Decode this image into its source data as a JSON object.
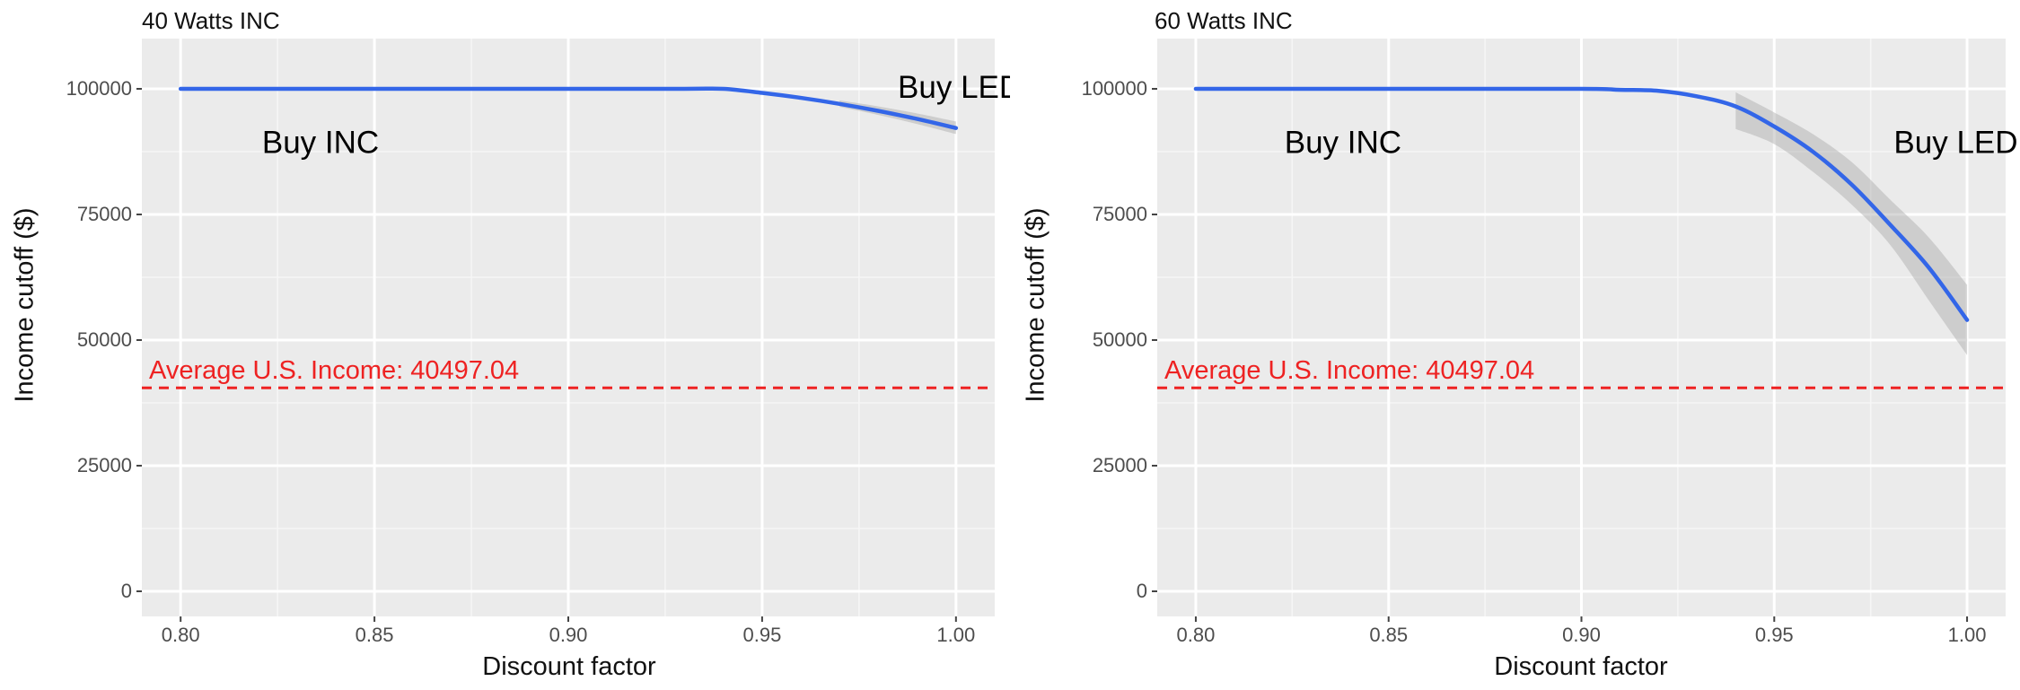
{
  "chart_data": [
    {
      "type": "line",
      "title": "40 Watts INC",
      "xlabel": "Discount factor",
      "ylabel": "Income cutoff ($)",
      "xlim": [
        0.79,
        1.01
      ],
      "ylim": [
        -5000,
        110000
      ],
      "x_ticks": [
        "0.80",
        "0.85",
        "0.90",
        "0.95",
        "1.00"
      ],
      "y_ticks": [
        "0",
        "25000",
        "50000",
        "75000",
        "100000"
      ],
      "grid": true,
      "series": [
        {
          "x": [
            0.8,
            0.85,
            0.9,
            0.93,
            0.94,
            0.95,
            0.96,
            0.97,
            0.98,
            0.99,
            1.0
          ],
          "y": [
            100000,
            100000,
            100000,
            100000,
            100000,
            99200,
            98200,
            97000,
            95600,
            94000,
            92200
          ],
          "ci_lower": [
            null,
            null,
            null,
            null,
            null,
            null,
            null,
            96400,
            94800,
            93000,
            91000
          ],
          "ci_upper": [
            null,
            null,
            null,
            null,
            null,
            null,
            null,
            97700,
            96500,
            95100,
            93500
          ],
          "color": "#3366e8"
        }
      ],
      "reference_line": {
        "y": 40497.04,
        "label": "Average U.S. Income: 40497.04",
        "color": "#ee2222",
        "style": "dashed"
      },
      "annotations": [
        {
          "text": "Buy INC",
          "x": 0.821,
          "y": 89000
        },
        {
          "text": "Buy LED",
          "x": 0.985,
          "y": 100000
        }
      ]
    },
    {
      "type": "line",
      "title": "60 Watts INC",
      "xlabel": "Discount factor",
      "ylabel": "Income cutoff ($)",
      "xlim": [
        0.79,
        1.01
      ],
      "ylim": [
        -5000,
        110000
      ],
      "x_ticks": [
        "0.80",
        "0.85",
        "0.90",
        "0.95",
        "1.00"
      ],
      "y_ticks": [
        "0",
        "25000",
        "50000",
        "75000",
        "100000"
      ],
      "grid": true,
      "series": [
        {
          "x": [
            0.8,
            0.85,
            0.9,
            0.91,
            0.92,
            0.93,
            0.94,
            0.95,
            0.96,
            0.97,
            0.98,
            0.99,
            1.0
          ],
          "y": [
            100000,
            100000,
            100000,
            99800,
            99600,
            98500,
            96500,
            92500,
            87500,
            81000,
            73000,
            64500,
            54000
          ],
          "ci_lower": [
            null,
            null,
            null,
            null,
            null,
            null,
            92000,
            89000,
            83500,
            77000,
            69000,
            58000,
            47000
          ],
          "ci_upper": [
            null,
            null,
            null,
            null,
            null,
            null,
            99300,
            95300,
            91000,
            85500,
            78000,
            70500,
            61000
          ],
          "color": "#3366e8"
        }
      ],
      "reference_line": {
        "y": 40497.04,
        "label": "Average U.S. Income: 40497.04",
        "color": "#ee2222",
        "style": "dashed"
      },
      "annotations": [
        {
          "text": "Buy INC",
          "x": 0.823,
          "y": 89000
        },
        {
          "text": "Buy LED",
          "x": 0.981,
          "y": 89000
        }
      ]
    }
  ]
}
